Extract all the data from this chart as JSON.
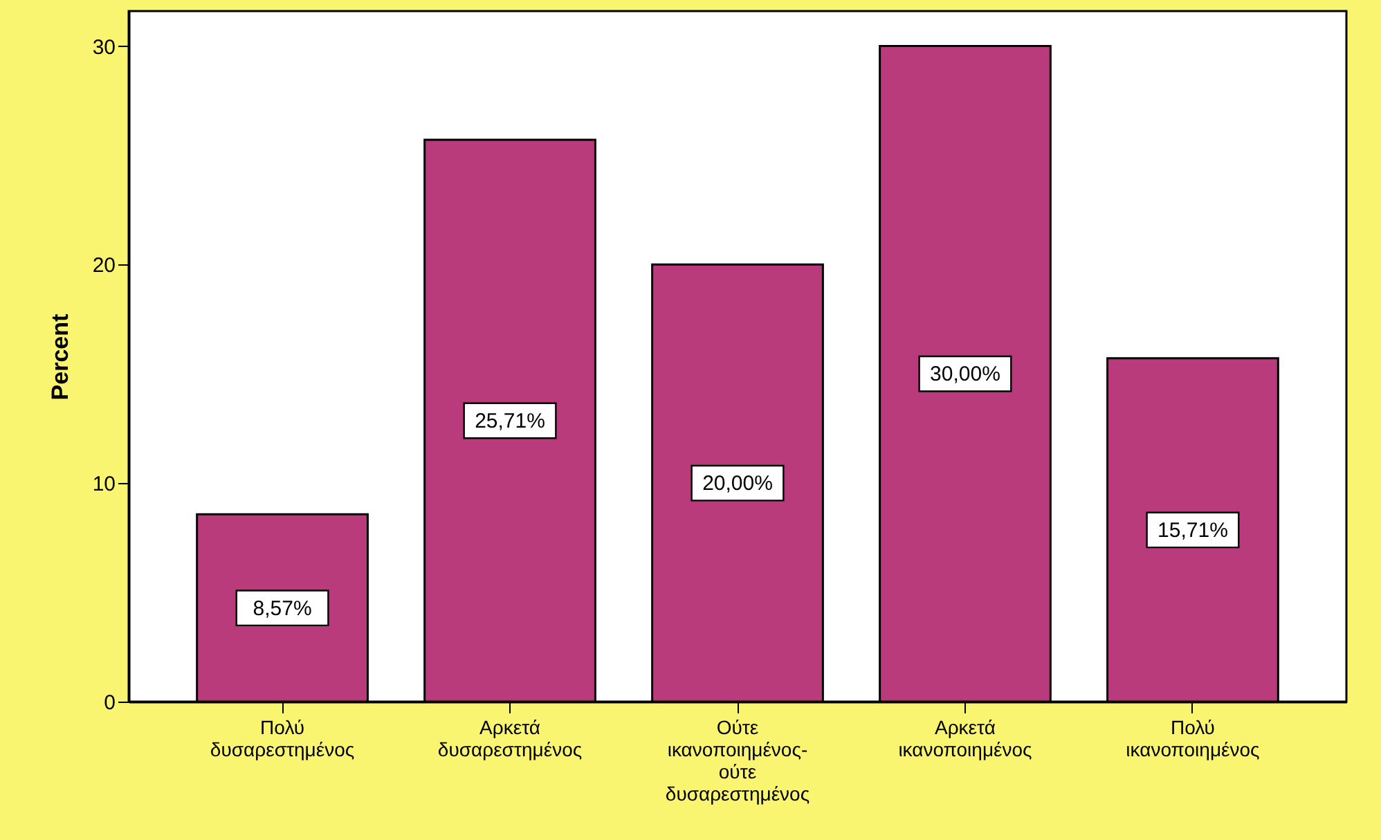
{
  "chart_data": {
    "type": "bar",
    "ylabel": "Percent",
    "categories": [
      "Πολύ δυσαρεστημένος",
      "Αρκετά δυσαρεστημένος",
      "Ούτε ικανοποιημένος- ούτε δυσαρεστημένος",
      "Αρκετά ικανοποιημένος",
      "Πολύ ικανοποιημένος"
    ],
    "values": [
      8.57,
      25.71,
      20.0,
      30.0,
      15.71
    ],
    "value_labels": [
      "8,57%",
      "25,71%",
      "20,00%",
      "30,00%",
      "15,71%"
    ],
    "color": "#b93b7b",
    "ylim": [
      0,
      31.6
    ],
    "yticks": [
      0,
      10,
      20,
      30
    ],
    "grid": false
  }
}
